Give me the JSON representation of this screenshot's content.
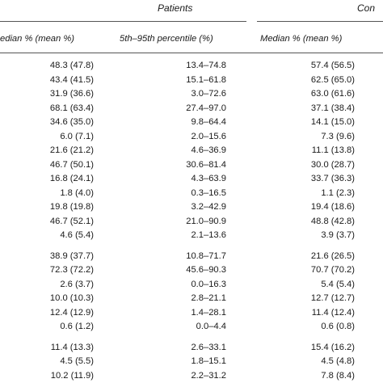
{
  "groups": {
    "patients": "Patients",
    "controls": "Con"
  },
  "headers": {
    "patients_median": "edian % (mean %)",
    "patients_pct": "5th–95th percentile (%)",
    "controls_median": "Median % (mean %)"
  },
  "rows": [
    {
      "p_med": "48.3 (47.8)",
      "p_pct": "13.4–74.8",
      "c_med": "57.4 (56.5)"
    },
    {
      "p_med": "43.4 (41.5)",
      "p_pct": "15.1–61.8",
      "c_med": "62.5 (65.0)"
    },
    {
      "p_med": "31.9 (36.6)",
      "p_pct": "3.0–72.6",
      "c_med": "63.0 (61.6)"
    },
    {
      "p_med": "68.1 (63.4)",
      "p_pct": "27.4–97.0",
      "c_med": "37.1 (38.4)"
    },
    {
      "p_med": "34.6 (35.0)",
      "p_pct": "9.8–64.4",
      "c_med": "14.1 (15.0)"
    },
    {
      "p_med": "6.0 (7.1)",
      "p_pct": "2.0–15.6",
      "c_med": "7.3 (9.6)"
    },
    {
      "p_med": "21.6 (21.2)",
      "p_pct": "4.6–36.9",
      "c_med": "11.1 (13.8)"
    },
    {
      "p_med": "46.7 (50.1)",
      "p_pct": "30.6–81.4",
      "c_med": "30.0 (28.7)"
    },
    {
      "p_med": "16.8 (24.1)",
      "p_pct": "4.3–63.9",
      "c_med": "33.7 (36.3)"
    },
    {
      "p_med": "1.8 (4.0)",
      "p_pct": "0.3–16.5",
      "c_med": "1.1 (2.3)"
    },
    {
      "p_med": "19.8 (19.8)",
      "p_pct": "3.2–42.9",
      "c_med": "19.4 (18.6)"
    },
    {
      "p_med": "46.7 (52.1)",
      "p_pct": "21.0–90.9",
      "c_med": "48.8 (42.8)"
    },
    {
      "p_med": "4.6 (5.4)",
      "p_pct": "2.1–13.6",
      "c_med": "3.9 (3.7)"
    },
    {
      "p_med": "38.9 (37.7)",
      "p_pct": "10.8–71.7",
      "c_med": "21.6 (26.5)"
    },
    {
      "p_med": "72.3 (72.2)",
      "p_pct": "45.6–90.3",
      "c_med": "70.7 (70.2)"
    },
    {
      "p_med": "2.6 (3.7)",
      "p_pct": "0.0–16.3",
      "c_med": "5.4 (5.4)"
    },
    {
      "p_med": "10.0 (10.3)",
      "p_pct": "2.8–21.1",
      "c_med": "12.7 (12.7)"
    },
    {
      "p_med": "12.4 (12.9)",
      "p_pct": "1.4–28.1",
      "c_med": "11.4 (12.4)"
    },
    {
      "p_med": "0.6 (1.2)",
      "p_pct": "0.0–4.4",
      "c_med": "0.6 (0.8)"
    },
    {
      "p_med": "11.4 (13.3)",
      "p_pct": "2.6–33.1",
      "c_med": "15.4 (16.2)"
    },
    {
      "p_med": "4.5 (5.5)",
      "p_pct": "1.8–15.1",
      "c_med": "4.5 (4.8)"
    },
    {
      "p_med": "10.2 (11.9)",
      "p_pct": "2.2–31.2",
      "c_med": "7.8 (8.4)"
    }
  ]
}
